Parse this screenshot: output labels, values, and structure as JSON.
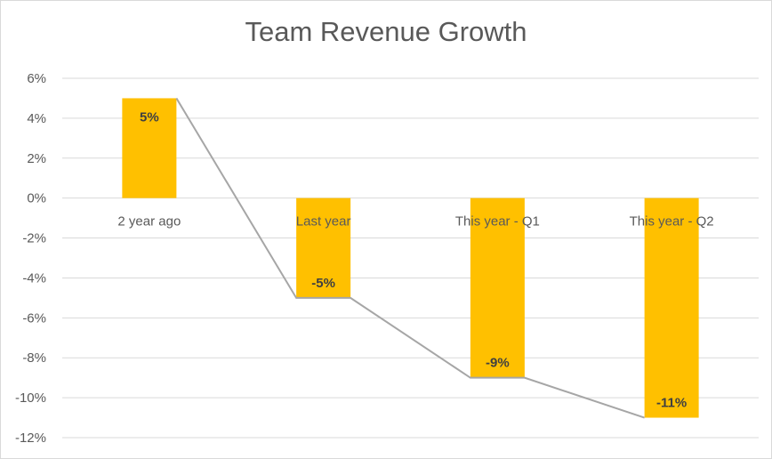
{
  "chart_data": {
    "type": "bar",
    "title": "Team Revenue Growth",
    "categories": [
      "2 year ago",
      "Last year",
      "This year - Q1",
      "This year - Q2"
    ],
    "series": [
      {
        "type": "bar",
        "values": [
          5,
          -5,
          -9,
          -11
        ],
        "data_labels": [
          "5%",
          "-5%",
          "-9%",
          "-11%"
        ]
      },
      {
        "type": "line",
        "values": [
          5,
          -5,
          -9,
          -11
        ]
      }
    ],
    "ylim": [
      -12,
      6
    ],
    "yticks": [
      6,
      4,
      2,
      0,
      -2,
      -4,
      -6,
      -8,
      -10,
      -12
    ],
    "ytick_labels": [
      "6%",
      "4%",
      "2%",
      "0%",
      "-2%",
      "-4%",
      "-6%",
      "-8%",
      "-10%",
      "-12%"
    ],
    "grid": true,
    "legend": "none",
    "colors": {
      "bar": "#FFC000",
      "line": "#A6A6A6",
      "grid": "#D9D9D9"
    }
  }
}
